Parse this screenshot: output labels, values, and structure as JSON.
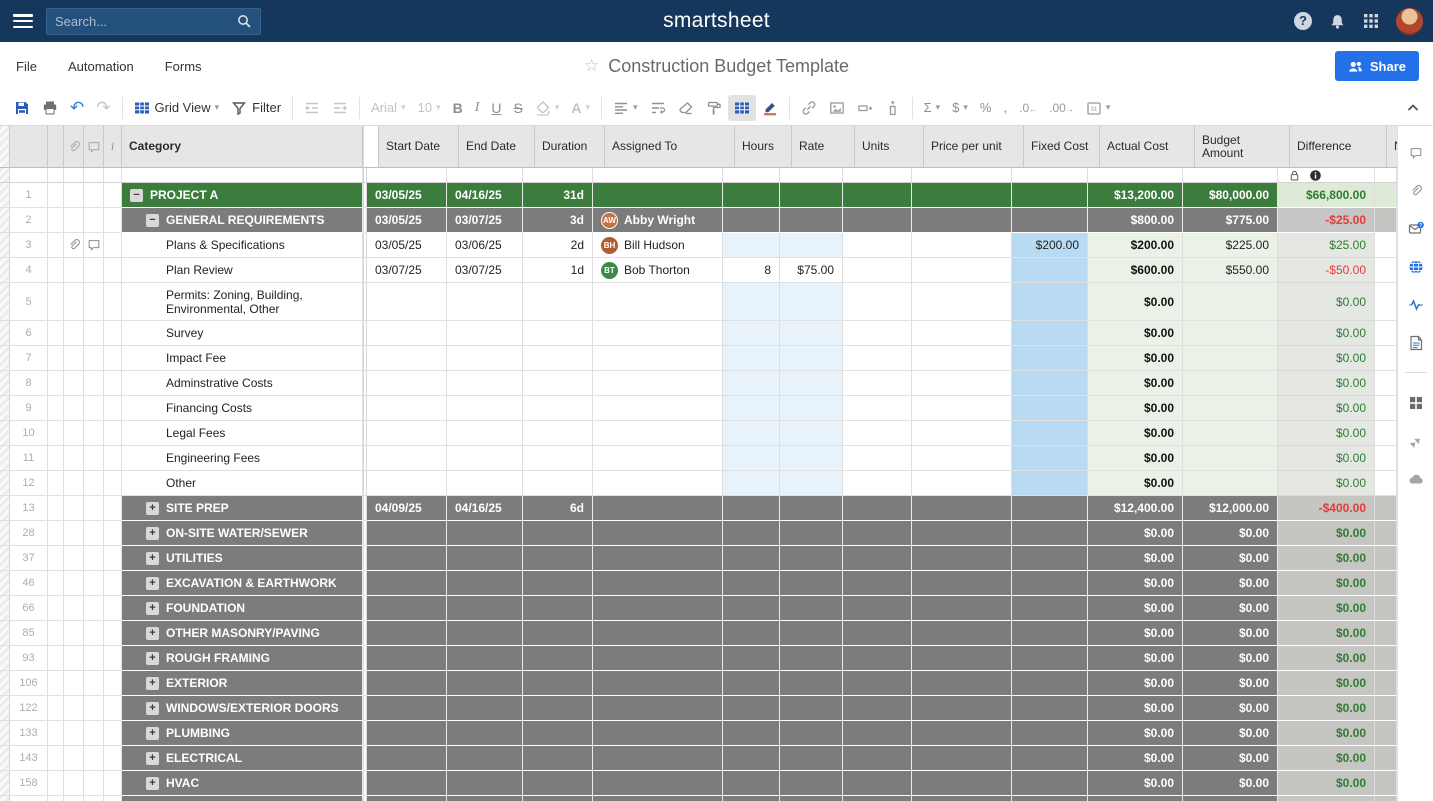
{
  "colors": {
    "topbar_navy": "#16375c",
    "accent_blue": "#2470e8",
    "project_green": "#3c7c3c",
    "section_gray": "#7c7c7c",
    "positive_green": "#2e7d33",
    "negative_red": "#e23c39",
    "fixed_cost_blue": "#b9daf3",
    "hours_rate_blue": "#e7f2fb",
    "cost_col_green": "#eaf2e8"
  },
  "topbar": {
    "search_placeholder": "Search...",
    "logo": "smartsheet"
  },
  "menubar": {
    "items": [
      "File",
      "Automation",
      "Forms"
    ],
    "title": "Construction Budget Template",
    "share_label": "Share"
  },
  "toolbar": {
    "grid_view": "Grid View",
    "filter": "Filter",
    "font_name": "Arial",
    "font_size": "10",
    "bold": "B",
    "italic": "I",
    "underline": "U",
    "strike": "S",
    "font_color": "A",
    "sum": "Σ",
    "currency": "$",
    "percent": "%",
    "comma": ",",
    "dec_left": ".0",
    "dec_right": ".00"
  },
  "grid": {
    "headers": {
      "category": "Category",
      "start": "Start Date",
      "end": "End Date",
      "duration": "Duration",
      "assigned": "Assigned To",
      "hours": "Hours",
      "rate": "Rate",
      "units": "Units",
      "price": "Price per unit",
      "fixed": "Fixed Cost",
      "actual": "Actual Cost",
      "budget": "Budget Amount",
      "difference": "Difference",
      "notes": "N"
    },
    "rows": [
      {
        "num": "1",
        "style": "green",
        "toggle": "minus",
        "indent": 0,
        "category": "PROJECT A",
        "start": "03/05/25",
        "end": "04/16/25",
        "duration": "31d",
        "actual": "$13,200.00",
        "budget": "$80,000.00",
        "difference": "$66,800.00",
        "diff_state": "pos"
      },
      {
        "num": "2",
        "style": "gray",
        "toggle": "minus",
        "indent": 1,
        "category": "GENERAL REQUIREMENTS",
        "start": "03/05/25",
        "end": "03/07/25",
        "duration": "3d",
        "assigned": {
          "initials": "AW",
          "name": "Abby Wright",
          "color": "#c2703d"
        },
        "actual": "$800.00",
        "budget": "$775.00",
        "difference": "-$25.00",
        "diff_state": "neg"
      },
      {
        "num": "3",
        "style": "task",
        "has_attachment": true,
        "has_comment": true,
        "category": "Plans & Specifications",
        "start": "03/05/25",
        "end": "03/06/25",
        "duration": "2d",
        "assigned": {
          "initials": "BH",
          "name": "Bill Hudson",
          "color": "#b25d2e"
        },
        "fixed": "$200.00",
        "actual": "$200.00",
        "budget": "$225.00",
        "difference": "$25.00",
        "diff_state": "pos",
        "hours_rate_blue": true,
        "fixed_blue": true
      },
      {
        "num": "4",
        "style": "task",
        "category": "Plan Review",
        "start": "03/07/25",
        "end": "03/07/25",
        "duration": "1d",
        "assigned": {
          "initials": "BT",
          "name": "Bob Thorton",
          "color": "#3c8a47"
        },
        "hours": "8",
        "rate": "$75.00",
        "actual": "$600.00",
        "budget": "$550.00",
        "difference": "-$50.00",
        "diff_state": "neg",
        "fixed_blue": true
      },
      {
        "num": "5",
        "style": "task",
        "tall": true,
        "category": "Permits: Zoning, Building, Environmental, Other",
        "actual": "$0.00",
        "difference": "$0.00",
        "diff_state": "pos",
        "hours_rate_blue": true,
        "fixed_blue": true
      },
      {
        "num": "6",
        "style": "task",
        "category": "Survey",
        "actual": "$0.00",
        "difference": "$0.00",
        "diff_state": "pos",
        "hours_rate_blue": true,
        "fixed_blue": true
      },
      {
        "num": "7",
        "style": "task",
        "category": "Impact Fee",
        "actual": "$0.00",
        "difference": "$0.00",
        "diff_state": "pos",
        "hours_rate_blue": true,
        "fixed_blue": true
      },
      {
        "num": "8",
        "style": "task",
        "category": "Adminstrative Costs",
        "actual": "$0.00",
        "difference": "$0.00",
        "diff_state": "pos",
        "hours_rate_blue": true,
        "fixed_blue": true
      },
      {
        "num": "9",
        "style": "task",
        "category": "Financing Costs",
        "actual": "$0.00",
        "difference": "$0.00",
        "diff_state": "pos",
        "hours_rate_blue": true,
        "fixed_blue": true
      },
      {
        "num": "10",
        "style": "task",
        "category": "Legal Fees",
        "actual": "$0.00",
        "difference": "$0.00",
        "diff_state": "pos",
        "hours_rate_blue": true,
        "fixed_blue": true
      },
      {
        "num": "11",
        "style": "task",
        "category": "Engineering Fees",
        "actual": "$0.00",
        "difference": "$0.00",
        "diff_state": "pos",
        "hours_rate_blue": true,
        "fixed_blue": true
      },
      {
        "num": "12",
        "style": "task",
        "category": "Other",
        "actual": "$0.00",
        "difference": "$0.00",
        "diff_state": "pos",
        "hours_rate_blue": true,
        "fixed_blue": true
      },
      {
        "num": "13",
        "style": "section",
        "toggle": "plus",
        "indent": 1,
        "category": "SITE PREP",
        "start": "04/09/25",
        "end": "04/16/25",
        "duration": "6d",
        "actual": "$12,400.00",
        "budget": "$12,000.00",
        "difference": "-$400.00",
        "diff_state": "neg"
      },
      {
        "num": "28",
        "style": "section",
        "toggle": "plus",
        "indent": 1,
        "category": "ON-SITE WATER/SEWER",
        "actual": "$0.00",
        "budget": "$0.00",
        "difference": "$0.00",
        "diff_state": "pos"
      },
      {
        "num": "37",
        "style": "section",
        "toggle": "plus",
        "indent": 1,
        "category": "UTILITIES",
        "actual": "$0.00",
        "budget": "$0.00",
        "difference": "$0.00",
        "diff_state": "pos"
      },
      {
        "num": "46",
        "style": "section",
        "toggle": "plus",
        "indent": 1,
        "category": "EXCAVATION & EARTHWORK",
        "actual": "$0.00",
        "budget": "$0.00",
        "difference": "$0.00",
        "diff_state": "pos"
      },
      {
        "num": "66",
        "style": "section",
        "toggle": "plus",
        "indent": 1,
        "category": "FOUNDATION",
        "actual": "$0.00",
        "budget": "$0.00",
        "difference": "$0.00",
        "diff_state": "pos"
      },
      {
        "num": "85",
        "style": "section",
        "toggle": "plus",
        "indent": 1,
        "category": "OTHER MASONRY/PAVING",
        "actual": "$0.00",
        "budget": "$0.00",
        "difference": "$0.00",
        "diff_state": "pos"
      },
      {
        "num": "93",
        "style": "section",
        "toggle": "plus",
        "indent": 1,
        "category": "ROUGH FRAMING",
        "actual": "$0.00",
        "budget": "$0.00",
        "difference": "$0.00",
        "diff_state": "pos"
      },
      {
        "num": "106",
        "style": "section",
        "toggle": "plus",
        "indent": 1,
        "category": "EXTERIOR",
        "actual": "$0.00",
        "budget": "$0.00",
        "difference": "$0.00",
        "diff_state": "pos"
      },
      {
        "num": "122",
        "style": "section",
        "toggle": "plus",
        "indent": 1,
        "category": "WINDOWS/EXTERIOR DOORS",
        "actual": "$0.00",
        "budget": "$0.00",
        "difference": "$0.00",
        "diff_state": "pos"
      },
      {
        "num": "133",
        "style": "section",
        "toggle": "plus",
        "indent": 1,
        "category": "PLUMBING",
        "actual": "$0.00",
        "budget": "$0.00",
        "difference": "$0.00",
        "diff_state": "pos"
      },
      {
        "num": "143",
        "style": "section",
        "toggle": "plus",
        "indent": 1,
        "category": "ELECTRICAL",
        "actual": "$0.00",
        "budget": "$0.00",
        "difference": "$0.00",
        "diff_state": "pos"
      },
      {
        "num": "158",
        "style": "section",
        "toggle": "plus",
        "indent": 1,
        "category": "HVAC",
        "actual": "$0.00",
        "budget": "$0.00",
        "difference": "$0.00",
        "diff_state": "pos"
      },
      {
        "num": "",
        "style": "section",
        "partial": true,
        "category": ""
      }
    ]
  },
  "sidebar": {
    "icons": [
      "comment",
      "attachment",
      "update-request",
      "publish-globe",
      "activity-log",
      "sheet-summary",
      "divider",
      "connections",
      "workflows",
      "cloud"
    ]
  }
}
